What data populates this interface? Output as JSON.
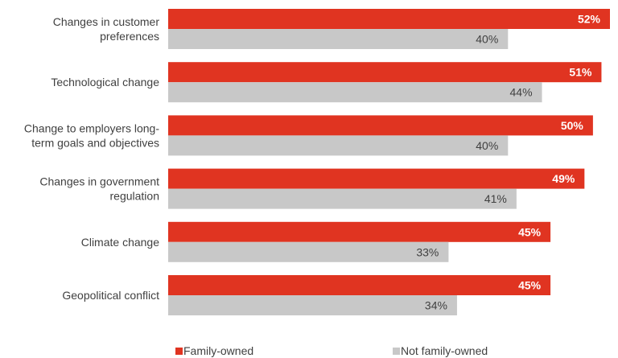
{
  "chart_data": {
    "type": "bar",
    "orientation": "horizontal",
    "categories": [
      [
        "Changes in customer",
        "preferences"
      ],
      [
        "Technological change"
      ],
      [
        "Change to employers long-",
        "term goals and objectives"
      ],
      [
        "Changes in government",
        "regulation"
      ],
      [
        "Climate change"
      ],
      [
        "Geopolitical conflict"
      ]
    ],
    "series": [
      {
        "name": "Family-owned",
        "color": "#e03421",
        "values": [
          52,
          51,
          50,
          49,
          45,
          45
        ],
        "labels": [
          "52%",
          "51%",
          "50%",
          "49%",
          "45%",
          "45%"
        ]
      },
      {
        "name": "Not family-owned",
        "color": "#c8c8c8",
        "values": [
          40,
          44,
          40,
          41,
          33,
          34
        ],
        "labels": [
          "40%",
          "44%",
          "40%",
          "41%",
          "33%",
          "34%"
        ]
      }
    ],
    "xlim": [
      0,
      52
    ],
    "grid": false,
    "legend_position": "bottom"
  }
}
